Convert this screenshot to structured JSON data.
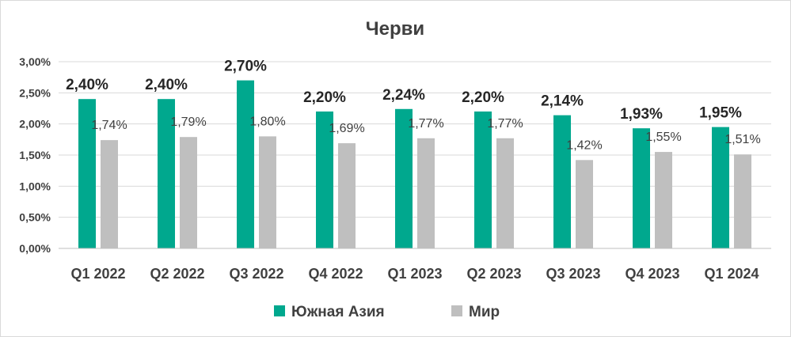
{
  "chart_data": {
    "type": "bar",
    "title": "Черви",
    "categories": [
      "Q1 2022",
      "Q2 2022",
      "Q3 2022",
      "Q4 2022",
      "Q1 2023",
      "Q2 2023",
      "Q3 2023",
      "Q4 2023",
      "Q1 2024"
    ],
    "series": [
      {
        "name": "Южная Азия",
        "color": "#00a88e",
        "values": [
          2.4,
          2.4,
          2.7,
          2.2,
          2.24,
          2.2,
          2.14,
          1.93,
          1.95
        ],
        "labels": [
          "2,40%",
          "2,40%",
          "2,70%",
          "2,20%",
          "2,24%",
          "2,20%",
          "2,14%",
          "1,93%",
          "1,95%"
        ]
      },
      {
        "name": "Мир",
        "color": "#bfbfbf",
        "values": [
          1.74,
          1.79,
          1.8,
          1.69,
          1.77,
          1.77,
          1.42,
          1.55,
          1.51
        ],
        "labels": [
          "1,74%",
          "1,79%",
          "1,80%",
          "1,69%",
          "1,77%",
          "1,77%",
          "1,42%",
          "1,55%",
          "1,51%"
        ]
      }
    ],
    "ylim": [
      0,
      3
    ],
    "yticks": [
      0,
      0.5,
      1,
      1.5,
      2,
      2.5,
      3
    ],
    "ytick_labels": [
      "0,00%",
      "0,50%",
      "1,00%",
      "1,50%",
      "2,00%",
      "2,50%",
      "3,00%"
    ],
    "grid": true,
    "legend_position": "bottom"
  }
}
